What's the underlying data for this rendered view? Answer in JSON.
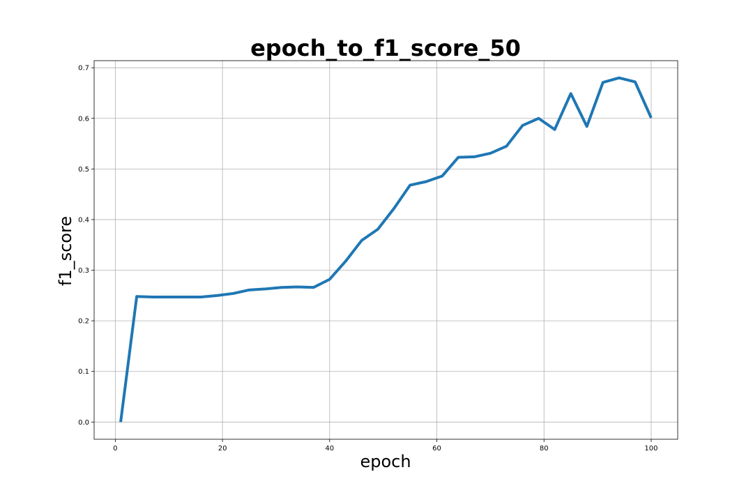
{
  "chart_data": {
    "type": "line",
    "title": "epoch_to_f1_score_50",
    "xlabel": "epoch",
    "ylabel": "f1_score",
    "xlim": [
      -3.95,
      104.95
    ],
    "ylim": [
      -0.034,
      0.714
    ],
    "xticks": [
      0,
      20,
      40,
      60,
      80,
      100
    ],
    "yticks": [
      0.0,
      0.1,
      0.2,
      0.3,
      0.4,
      0.5,
      0.6,
      0.7
    ],
    "xtick_labels": [
      "0",
      "20",
      "40",
      "60",
      "80",
      "100"
    ],
    "ytick_labels": [
      "0.0",
      "0.1",
      "0.2",
      "0.3",
      "0.4",
      "0.5",
      "0.6",
      "0.7"
    ],
    "grid": true,
    "series": [
      {
        "color": "#1f77b4",
        "x": [
          1,
          4,
          7,
          10,
          13,
          16,
          19,
          22,
          25,
          28,
          31,
          34,
          37,
          40,
          43,
          46,
          49,
          52,
          55,
          58,
          61,
          64,
          67,
          70,
          73,
          76,
          79,
          82,
          85,
          88,
          91,
          94,
          97,
          100
        ],
        "y": [
          0.0,
          0.248,
          0.247,
          0.247,
          0.247,
          0.247,
          0.25,
          0.254,
          0.261,
          0.263,
          0.266,
          0.267,
          0.266,
          0.282,
          0.318,
          0.359,
          0.381,
          0.422,
          0.468,
          0.475,
          0.486,
          0.523,
          0.524,
          0.531,
          0.545,
          0.586,
          0.6,
          0.578,
          0.649,
          0.584,
          0.671,
          0.68,
          0.672,
          0.601
        ]
      }
    ]
  }
}
